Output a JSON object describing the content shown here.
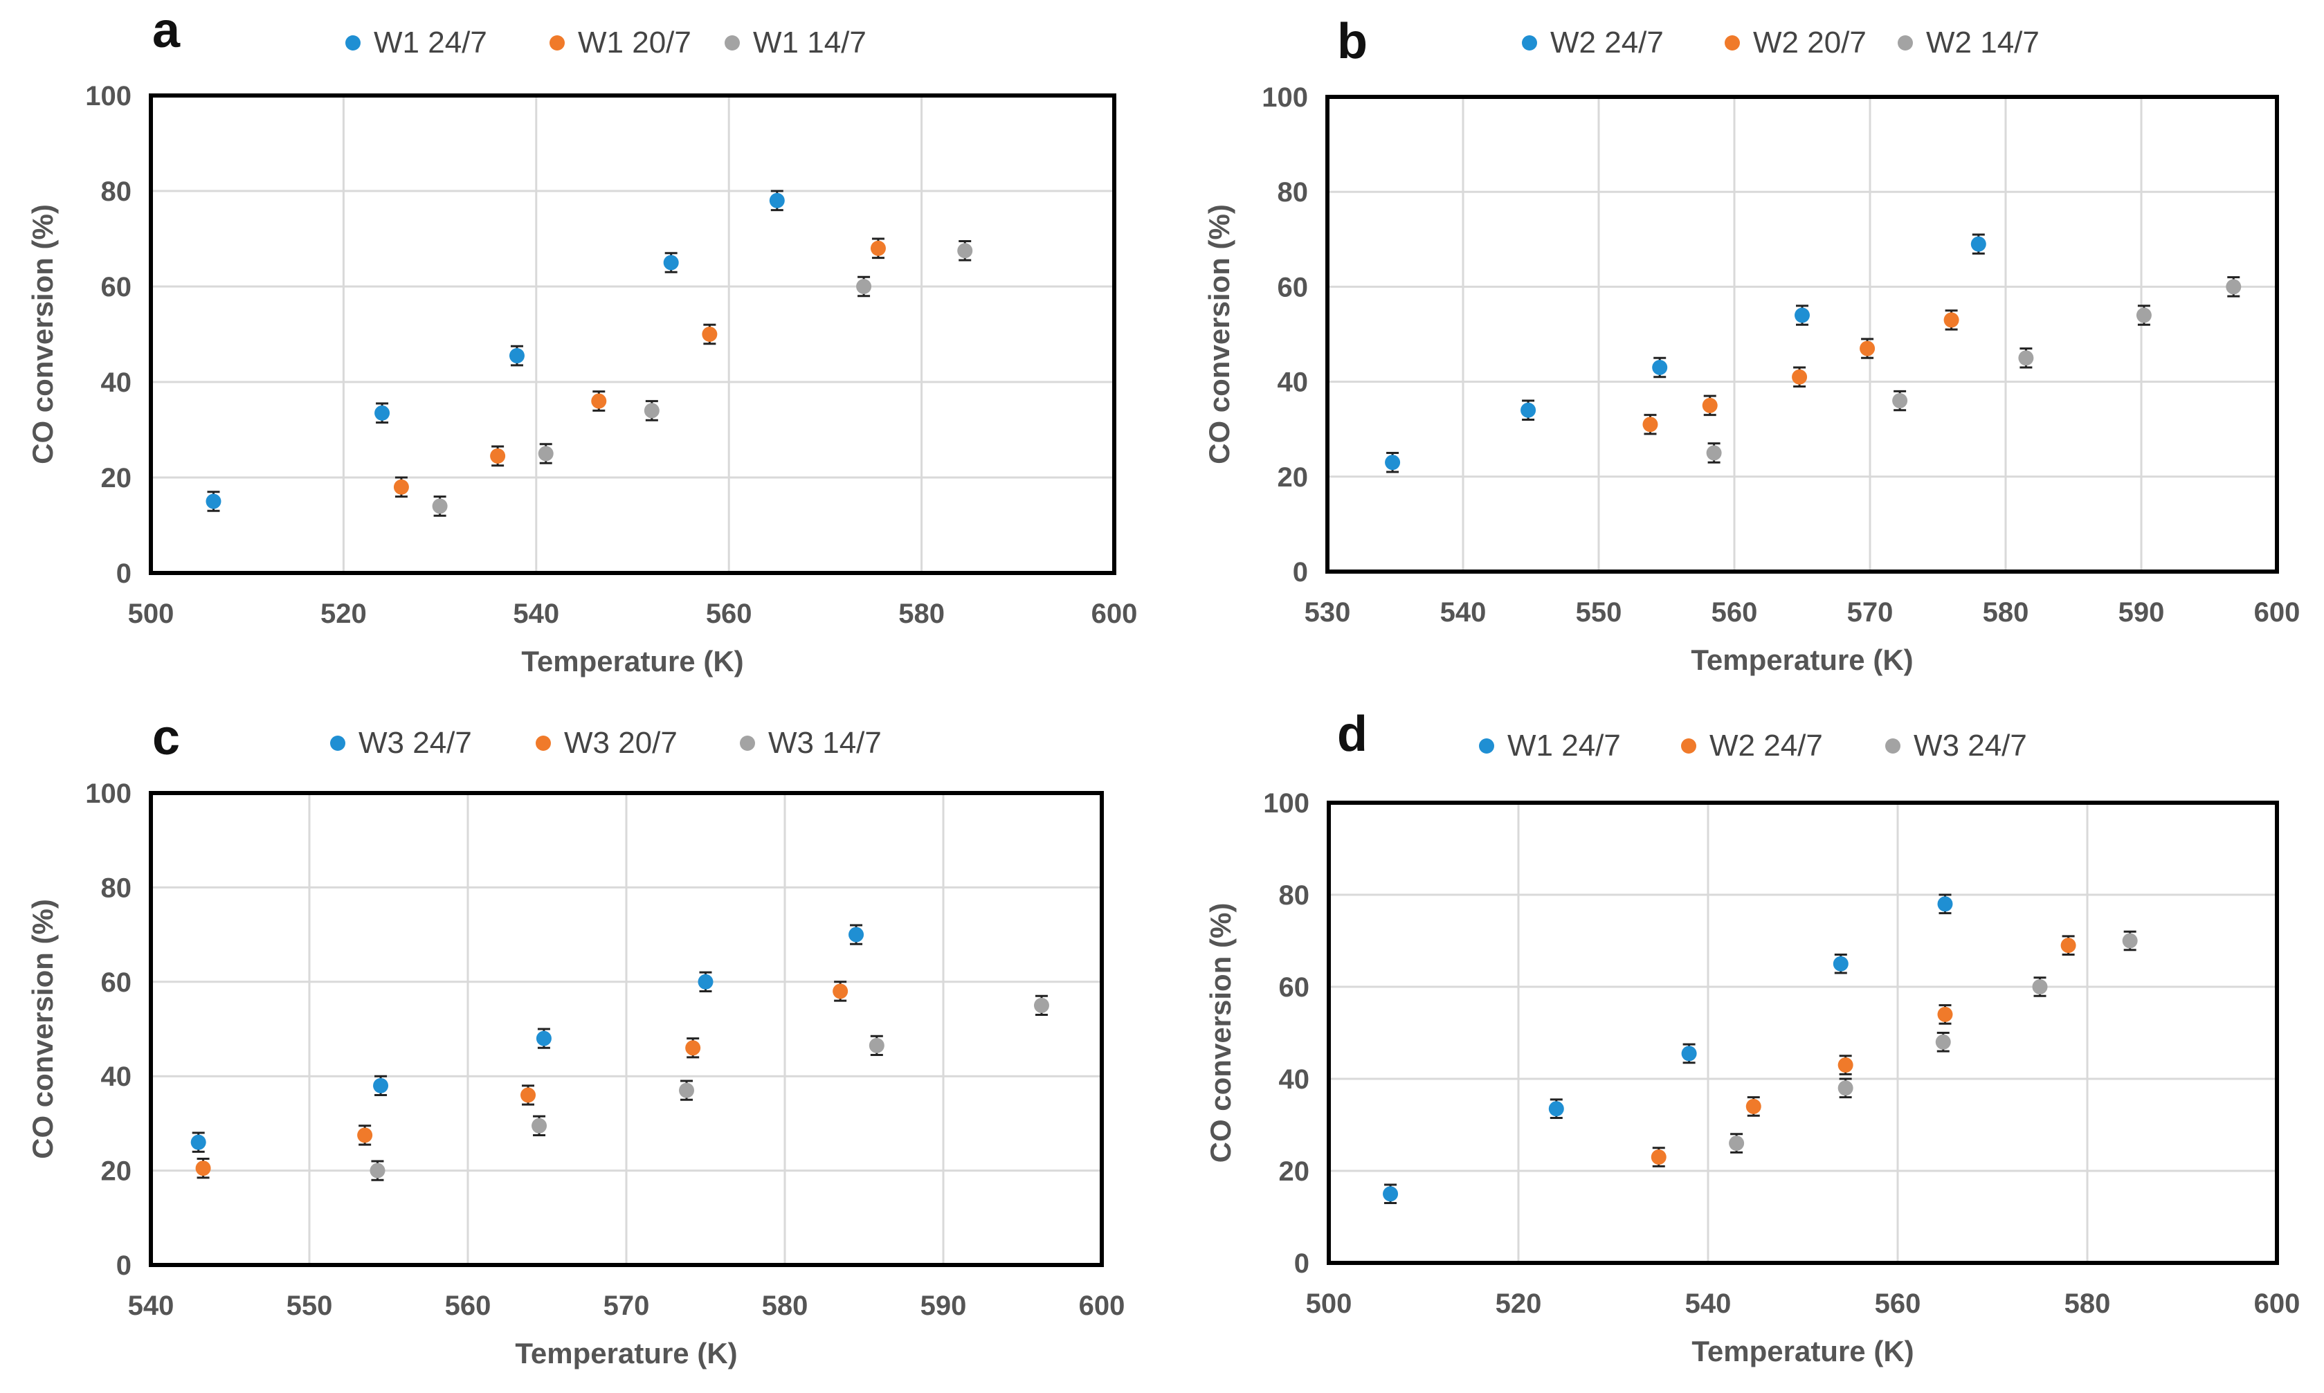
{
  "colors": {
    "blue": "#1f8fd3",
    "orange": "#f07a2a",
    "gray": "#a3a3a3"
  },
  "chart_data": [
    {
      "type": "scatter",
      "panel": "a",
      "xlabel": "Temperature (K)",
      "ylabel": "CO conversion (%)",
      "xlim": [
        500,
        600
      ],
      "ylim": [
        0,
        100
      ],
      "xticks": [
        500,
        520,
        540,
        560,
        580,
        600
      ],
      "xtick_labels": [
        "500",
        "520",
        "540",
        "560",
        "580",
        "600"
      ],
      "yticks": [
        0,
        20,
        40,
        60,
        80,
        100
      ],
      "ytick_labels": [
        "0",
        "20",
        "40",
        "60",
        "80",
        "100"
      ],
      "error": 2,
      "series": [
        {
          "name": "W1 24/7",
          "color": "blue",
          "x": [
            506.5,
            524,
            538,
            554,
            565
          ],
          "y": [
            15,
            33.5,
            45.5,
            65,
            78
          ]
        },
        {
          "name": "W1 20/7",
          "color": "orange",
          "x": [
            526,
            536,
            546.5,
            558,
            575.5
          ],
          "y": [
            18,
            24.5,
            36,
            50,
            68
          ]
        },
        {
          "name": "W1 14/7",
          "color": "gray",
          "x": [
            530,
            541,
            552,
            574,
            584.5
          ],
          "y": [
            14,
            25,
            34,
            60,
            67.5
          ]
        }
      ]
    },
    {
      "type": "scatter",
      "panel": "b",
      "xlabel": "Temperature (K)",
      "ylabel": "CO conversion (%)",
      "xlim": [
        530,
        600
      ],
      "ylim": [
        0,
        100
      ],
      "xticks": [
        530,
        540,
        550,
        560,
        570,
        580,
        590,
        600
      ],
      "xtick_labels": [
        "530",
        "540",
        "550",
        "560",
        "570",
        "580",
        "590",
        "600"
      ],
      "yticks": [
        0,
        20,
        40,
        60,
        80,
        100
      ],
      "ytick_labels": [
        "0",
        "20",
        "40",
        "60",
        "80",
        "100"
      ],
      "error": 2,
      "series": [
        {
          "name": "W2 24/7",
          "color": "blue",
          "x": [
            534.8,
            544.8,
            554.5,
            565,
            578
          ],
          "y": [
            23,
            34,
            43,
            54,
            69
          ]
        },
        {
          "name": "W2 20/7",
          "color": "orange",
          "x": [
            553.8,
            558.2,
            564.8,
            569.8,
            576
          ],
          "y": [
            31,
            35,
            41,
            47,
            53
          ]
        },
        {
          "name": "W2 14/7",
          "color": "gray",
          "x": [
            558.5,
            572.2,
            581.5,
            590.2,
            596.8
          ],
          "y": [
            25,
            36,
            45,
            54,
            60
          ]
        }
      ]
    },
    {
      "type": "scatter",
      "panel": "c",
      "xlabel": "Temperature (K)",
      "ylabel": "CO conversion (%)",
      "xlim": [
        540,
        600
      ],
      "ylim": [
        0,
        100
      ],
      "xticks": [
        540,
        550,
        560,
        570,
        580,
        590,
        600
      ],
      "xtick_labels": [
        "540",
        "550",
        "560",
        "570",
        "580",
        "590",
        "600"
      ],
      "yticks": [
        0,
        20,
        40,
        60,
        80,
        100
      ],
      "ytick_labels": [
        "0",
        "20",
        "40",
        "60",
        "80",
        "100"
      ],
      "error": 2,
      "series": [
        {
          "name": "W3 24/7",
          "color": "blue",
          "x": [
            543,
            554.5,
            564.8,
            575,
            584.5
          ],
          "y": [
            26,
            38,
            48,
            60,
            70
          ]
        },
        {
          "name": "W3 20/7",
          "color": "orange",
          "x": [
            543.3,
            553.5,
            563.8,
            574.2,
            583.5
          ],
          "y": [
            20.5,
            27.5,
            36,
            46,
            58
          ]
        },
        {
          "name": "W3 14/7",
          "color": "gray",
          "x": [
            554.3,
            564.5,
            573.8,
            585.8,
            596.2
          ],
          "y": [
            20,
            29.5,
            37,
            46.5,
            55
          ]
        }
      ]
    },
    {
      "type": "scatter",
      "panel": "d",
      "xlabel": "Temperature (K)",
      "ylabel": "CO conversion (%)",
      "xlim": [
        500,
        600
      ],
      "ylim": [
        0,
        100
      ],
      "xticks": [
        500,
        520,
        540,
        560,
        580,
        600
      ],
      "xtick_labels": [
        "500",
        "520",
        "540",
        "560",
        "580",
        "600"
      ],
      "yticks": [
        0,
        20,
        40,
        60,
        80,
        100
      ],
      "ytick_labels": [
        "0",
        "20",
        "40",
        "60",
        "80",
        "100"
      ],
      "error": 2,
      "series": [
        {
          "name": "W1 24/7",
          "color": "blue",
          "x": [
            506.5,
            524,
            538,
            554,
            565
          ],
          "y": [
            15,
            33.5,
            45.5,
            65,
            78
          ]
        },
        {
          "name": "W2 24/7",
          "color": "orange",
          "x": [
            534.8,
            544.8,
            554.5,
            565,
            578
          ],
          "y": [
            23,
            34,
            43,
            54,
            69
          ]
        },
        {
          "name": "W3 24/7",
          "color": "gray",
          "x": [
            543,
            554.5,
            564.8,
            575,
            584.5
          ],
          "y": [
            26,
            38,
            48,
            60,
            70
          ]
        }
      ]
    }
  ]
}
